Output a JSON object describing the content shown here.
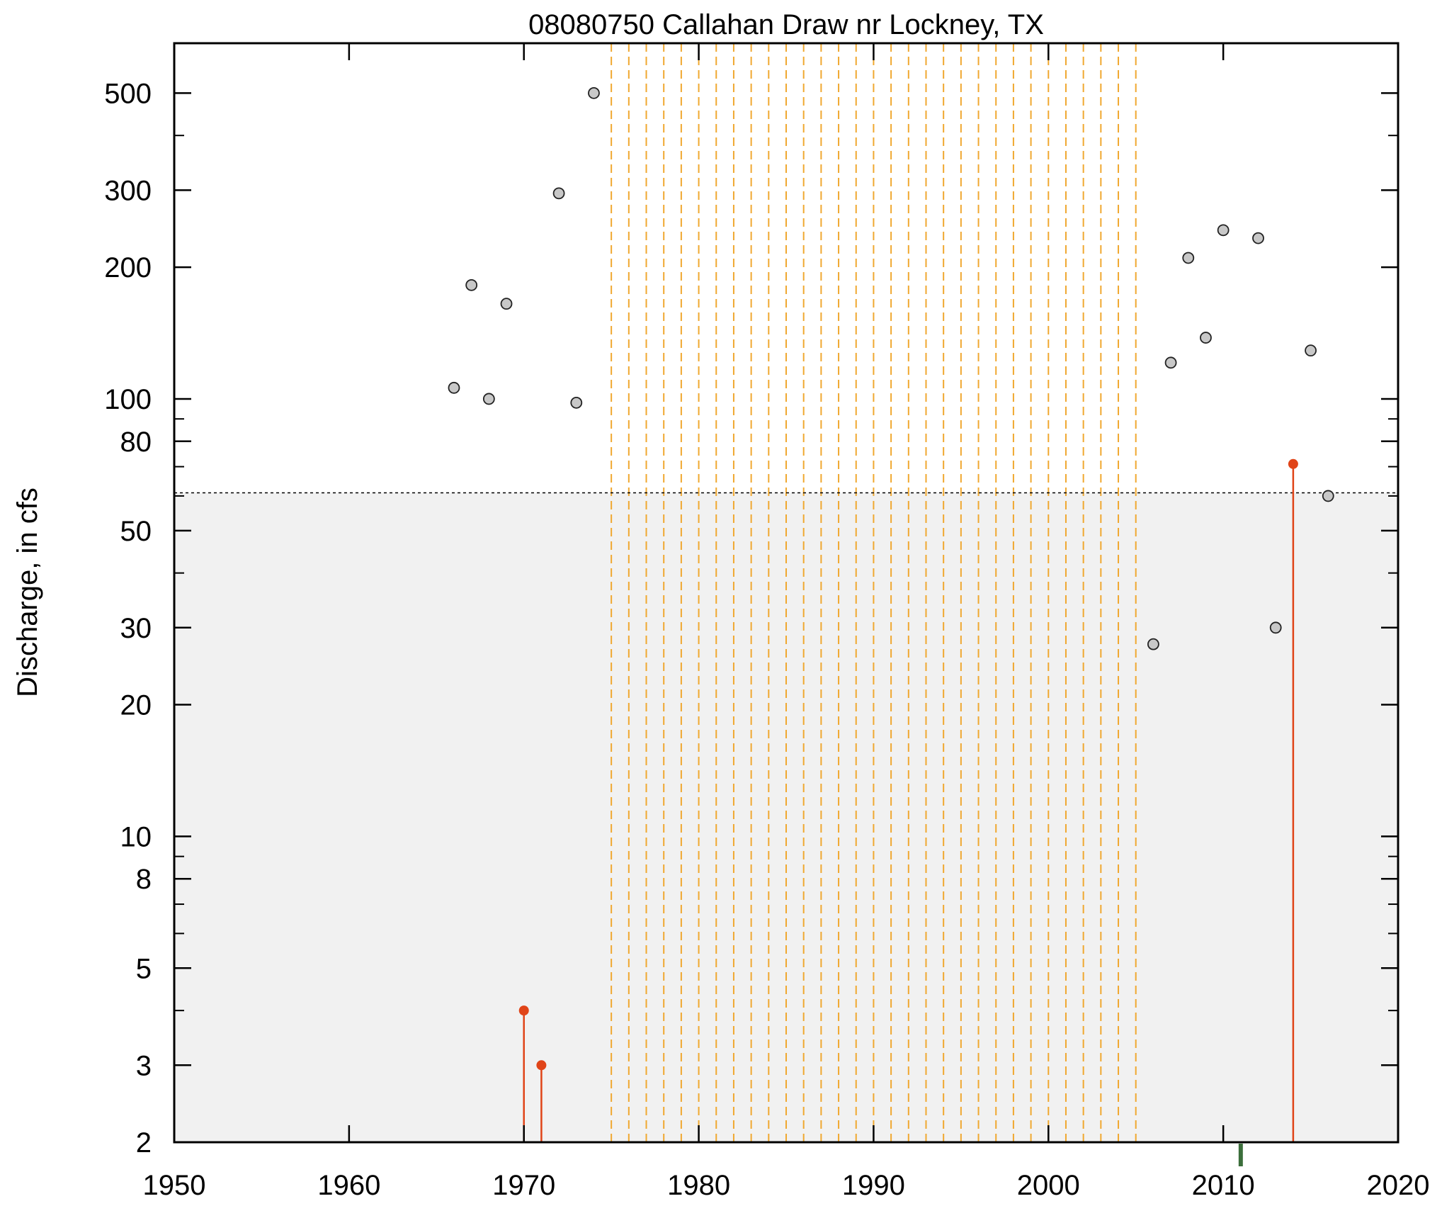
{
  "chart_data": {
    "type": "scatter",
    "title": "08080750 Callahan Draw nr Lockney, TX",
    "ylabel": "Discharge, in cfs",
    "xlabel": "",
    "xlim": [
      1950,
      2020
    ],
    "ylim": [
      2,
      650
    ],
    "yscale": "log",
    "x_ticks": [
      1950,
      1960,
      1970,
      1980,
      1990,
      2000,
      2010,
      2020
    ],
    "x_tick_labels": [
      "1950",
      "1960",
      "1970",
      "1980",
      "1990",
      "2000",
      "2010",
      "2020"
    ],
    "y_tick_labels": [
      {
        "value": 2,
        "label": "2"
      },
      {
        "value": 3,
        "label": "3"
      },
      {
        "value": 5,
        "label": "5"
      },
      {
        "value": 8,
        "label": "8"
      },
      {
        "value": 10,
        "label": "10"
      },
      {
        "value": 20,
        "label": "20"
      },
      {
        "value": 30,
        "label": "30"
      },
      {
        "value": 50,
        "label": "50"
      },
      {
        "value": 80,
        "label": "80"
      },
      {
        "value": 100,
        "label": "100"
      },
      {
        "value": 200,
        "label": "200"
      },
      {
        "value": 300,
        "label": "300"
      },
      {
        "value": 500,
        "label": "500"
      }
    ],
    "y_minor_ticks": [
      4,
      6,
      7,
      9,
      40,
      60,
      70,
      90,
      400
    ],
    "threshold": 61,
    "shaded_below_threshold": true,
    "gap_years": [
      1975,
      1976,
      1977,
      1978,
      1979,
      1980,
      1981,
      1982,
      1983,
      1984,
      1985,
      1986,
      1987,
      1988,
      1989,
      1990,
      1991,
      1992,
      1993,
      1994,
      1995,
      1996,
      1997,
      1998,
      1999,
      2000,
      2001,
      2002,
      2003,
      2004,
      2005
    ],
    "series": [
      {
        "points": [
          {
            "x": 1966,
            "y": 106
          },
          {
            "x": 1967,
            "y": 182
          },
          {
            "x": 1968,
            "y": 100
          },
          {
            "x": 1969,
            "y": 165
          },
          {
            "x": 1972,
            "y": 295
          },
          {
            "x": 1973,
            "y": 98
          },
          {
            "x": 1974,
            "y": 500
          },
          {
            "x": 2006,
            "y": 27.5
          },
          {
            "x": 2007,
            "y": 121
          },
          {
            "x": 2008,
            "y": 210
          },
          {
            "x": 2009,
            "y": 138
          },
          {
            "x": 2010,
            "y": 243
          },
          {
            "x": 2012,
            "y": 233
          },
          {
            "x": 2013,
            "y": 30
          },
          {
            "x": 2015,
            "y": 129
          },
          {
            "x": 2016,
            "y": 60
          }
        ]
      },
      {
        "points": [
          {
            "x": 1970,
            "y": 4
          },
          {
            "x": 1971,
            "y": 3
          },
          {
            "x": 2014,
            "y": 71
          }
        ]
      }
    ],
    "marker_years": [
      2011
    ],
    "colors": {
      "background": "#ffffff",
      "shade": "#f1f1f1",
      "gap_line": "#f0a830",
      "circle_fill": "#c8c8c8",
      "stem": "#e04418",
      "marker": "#3b6e3b",
      "axis": "#000000"
    }
  }
}
